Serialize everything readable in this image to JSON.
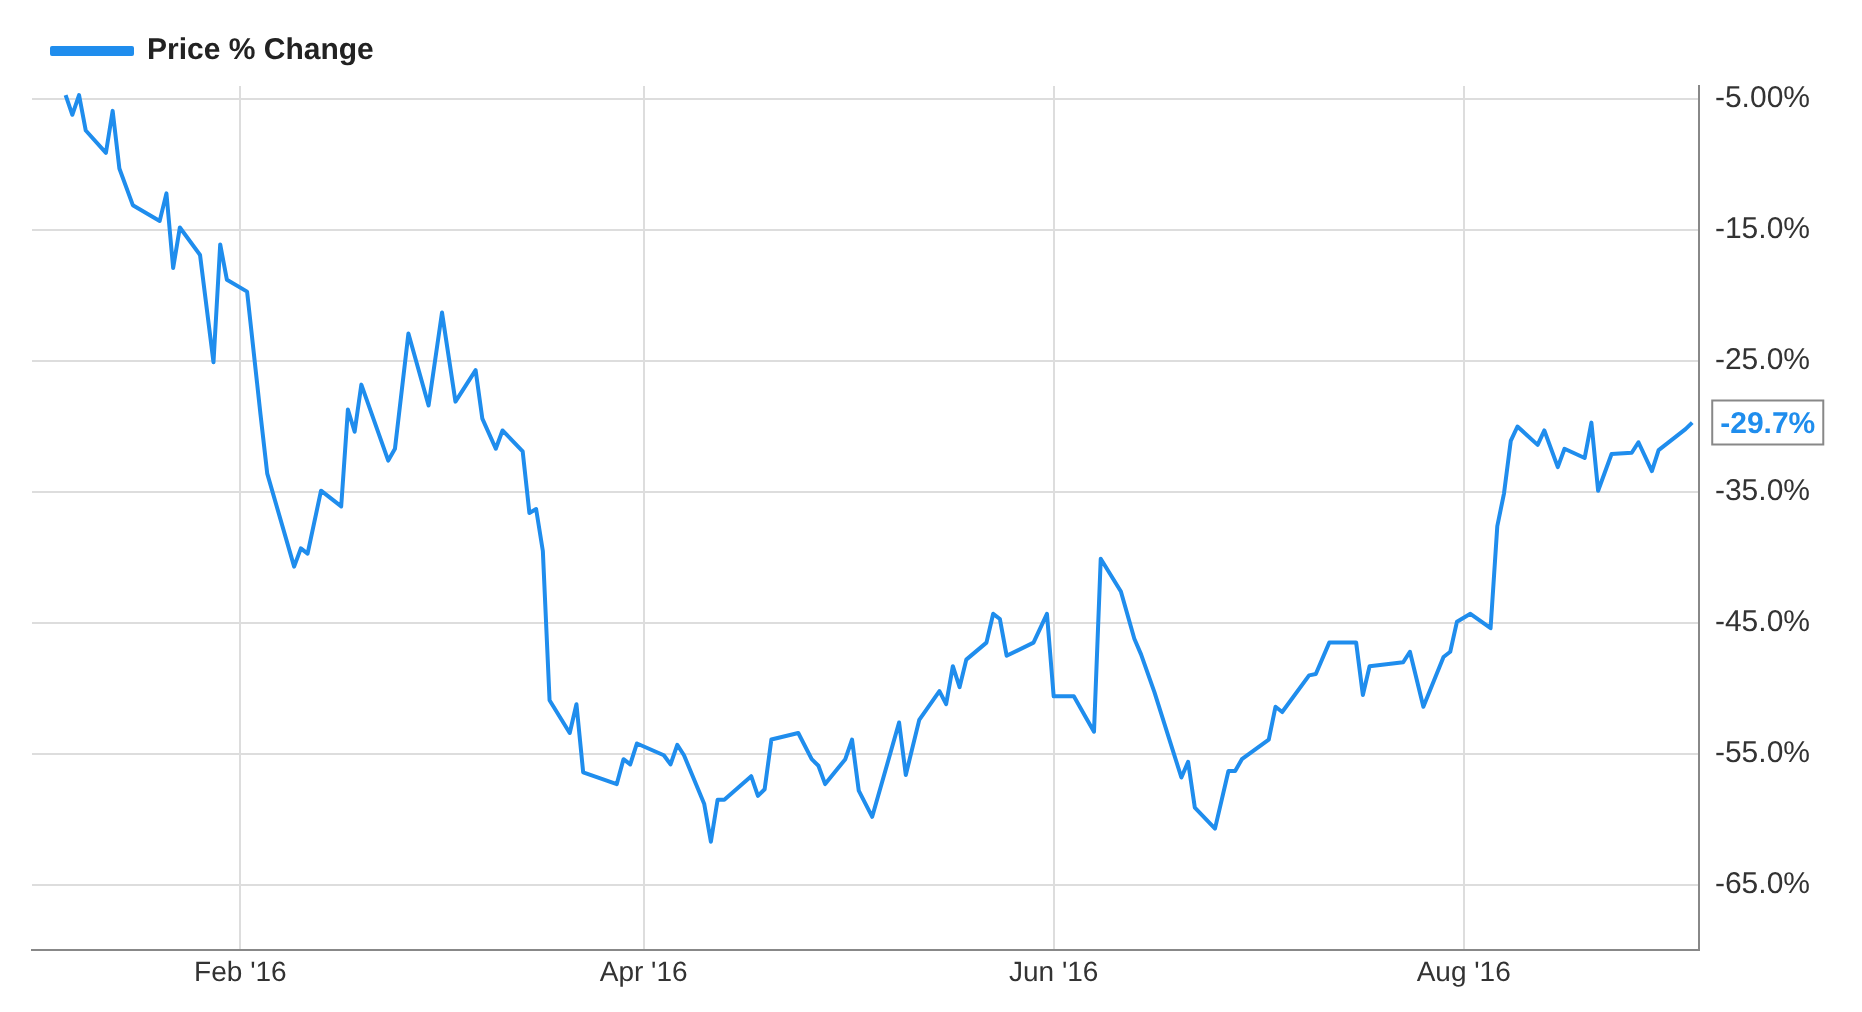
{
  "chart_data": {
    "type": "line",
    "legend": "top left",
    "grid": true,
    "xlim": [
      "2016-01-01",
      "2016-09-05"
    ],
    "xticks": [
      {
        "value": "2016-02-01",
        "label": "Feb '16"
      },
      {
        "value": "2016-04-01",
        "label": "Apr '16"
      },
      {
        "value": "2016-06-01",
        "label": "Jun '16"
      },
      {
        "value": "2016-08-01",
        "label": "Aug '16"
      }
    ],
    "ylim": [
      -70,
      -4
    ],
    "yticks": [
      {
        "value": -5,
        "label": "-5.00%"
      },
      {
        "value": -15,
        "label": "-15.0%"
      },
      {
        "value": -25,
        "label": "-25.0%"
      },
      {
        "value": -35,
        "label": "-35.0%"
      },
      {
        "value": -45,
        "label": "-45.0%"
      },
      {
        "value": -55,
        "label": "-55.0%"
      },
      {
        "value": -65,
        "label": "-65.0%"
      }
    ],
    "annotations": [
      {
        "text": "-29.7%",
        "x": "2016-09-04",
        "y": -29.7
      }
    ],
    "series": [
      {
        "name": "Price % Change",
        "color": "#1f8ded",
        "x": [
          "2016-01-06",
          "2016-01-07",
          "2016-01-08",
          "2016-01-09",
          "2016-01-12",
          "2016-01-13",
          "2016-01-14",
          "2016-01-16",
          "2016-01-20",
          "2016-01-21",
          "2016-01-22",
          "2016-01-23",
          "2016-01-26",
          "2016-01-28",
          "2016-01-29",
          "2016-01-30",
          "2016-02-02",
          "2016-02-04",
          "2016-02-05",
          "2016-02-09",
          "2016-02-10",
          "2016-02-11",
          "2016-02-13",
          "2016-02-16",
          "2016-02-17",
          "2016-02-18",
          "2016-02-19",
          "2016-02-23",
          "2016-02-24",
          "2016-02-26",
          "2016-02-29",
          "2016-03-02",
          "2016-03-04",
          "2016-03-07",
          "2016-03-08",
          "2016-03-10",
          "2016-03-11",
          "2016-03-14",
          "2016-03-15",
          "2016-03-16",
          "2016-03-17",
          "2016-03-18",
          "2016-03-21",
          "2016-03-22",
          "2016-03-23",
          "2016-03-28",
          "2016-03-29",
          "2016-03-30",
          "2016-03-31",
          "2016-04-04",
          "2016-04-05",
          "2016-04-06",
          "2016-04-07",
          "2016-04-10",
          "2016-04-11",
          "2016-04-12",
          "2016-04-13",
          "2016-04-17",
          "2016-04-18",
          "2016-04-19",
          "2016-04-20",
          "2016-04-24",
          "2016-04-26",
          "2016-04-27",
          "2016-04-28",
          "2016-05-01",
          "2016-05-02",
          "2016-05-03",
          "2016-05-05",
          "2016-05-09",
          "2016-05-10",
          "2016-05-12",
          "2016-05-15",
          "2016-05-16",
          "2016-05-17",
          "2016-05-18",
          "2016-05-19",
          "2016-05-22",
          "2016-05-23",
          "2016-05-24",
          "2016-05-25",
          "2016-05-29",
          "2016-05-31",
          "2016-06-01",
          "2016-06-04",
          "2016-06-06",
          "2016-06-07",
          "2016-06-08",
          "2016-06-11",
          "2016-06-13",
          "2016-06-14",
          "2016-06-16",
          "2016-06-20",
          "2016-06-21",
          "2016-06-22",
          "2016-06-25",
          "2016-06-27",
          "2016-06-28",
          "2016-06-29",
          "2016-07-03",
          "2016-07-04",
          "2016-07-05",
          "2016-07-09",
          "2016-07-10",
          "2016-07-12",
          "2016-07-16",
          "2016-07-17",
          "2016-07-18",
          "2016-07-23",
          "2016-07-24",
          "2016-07-26",
          "2016-07-29",
          "2016-07-30",
          "2016-07-31",
          "2016-08-02",
          "2016-08-05",
          "2016-08-06",
          "2016-08-07",
          "2016-08-08",
          "2016-08-09",
          "2016-08-12",
          "2016-08-13",
          "2016-08-15",
          "2016-08-16",
          "2016-08-19",
          "2016-08-20",
          "2016-08-21",
          "2016-08-23",
          "2016-08-26",
          "2016-08-27",
          "2016-08-29",
          "2016-08-30",
          "2016-09-03",
          "2016-09-04"
        ],
        "values": [
          -4.7,
          -6.2,
          -4.7,
          -7.4,
          -9.1,
          -5.9,
          -10.3,
          -13.1,
          -14.3,
          -12.2,
          -17.9,
          -14.8,
          -16.9,
          -25.1,
          -16.1,
          -18.8,
          -19.7,
          -29.1,
          -33.6,
          -40.7,
          -39.3,
          -39.7,
          -34.9,
          -36.1,
          -28.7,
          -30.4,
          -26.8,
          -32.6,
          -31.7,
          -22.9,
          -28.4,
          -21.3,
          -28.1,
          -25.7,
          -29.4,
          -31.7,
          -30.3,
          -31.9,
          -36.6,
          -36.3,
          -39.5,
          -50.9,
          -53.4,
          -51.2,
          -56.4,
          -57.3,
          -55.4,
          -55.8,
          -54.2,
          -55.1,
          -55.8,
          -54.3,
          -55.1,
          -58.8,
          -61.7,
          -58.5,
          -58.5,
          -56.7,
          -58.2,
          -57.7,
          -53.9,
          -53.4,
          -55.4,
          -55.9,
          -57.3,
          -55.4,
          -53.9,
          -57.8,
          -59.8,
          -52.6,
          -56.6,
          -52.4,
          -50.2,
          -51.2,
          -48.3,
          -49.9,
          -47.8,
          -46.5,
          -44.3,
          -44.7,
          -47.5,
          -46.5,
          -44.3,
          -50.6,
          -50.6,
          -52.4,
          -53.3,
          -40.1,
          -42.6,
          -46.2,
          -47.4,
          -50.3,
          -56.8,
          -55.6,
          -59.1,
          -60.7,
          -56.3,
          -56.3,
          -55.4,
          -53.9,
          -51.4,
          -51.8,
          -49.0,
          -48.9,
          -46.5,
          -46.5,
          -50.5,
          -48.3,
          -48.0,
          -47.2,
          -51.4,
          -47.6,
          -47.2,
          -44.9,
          -44.3,
          -45.4,
          -37.6,
          -35.1,
          -31.1,
          -30.0,
          -31.4,
          -30.3,
          -33.1,
          -31.7,
          -32.4,
          -29.7,
          -34.9,
          -32.1,
          -32.0,
          -31.2,
          -33.4,
          -31.8,
          -30.2,
          -29.7
        ]
      }
    ]
  }
}
